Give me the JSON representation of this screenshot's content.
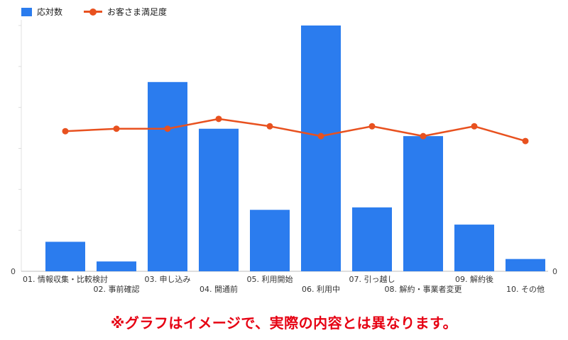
{
  "legend": {
    "bar_label": "応対数",
    "line_label": "お客さま満足度"
  },
  "axes": {
    "y_left_min_label": "0",
    "y_right_min_label": "0"
  },
  "footnote": {
    "text": "※グラフはイメージで、実際の内容とは異なります。",
    "color": "#e60012"
  },
  "chart_data": {
    "type": "combo",
    "title": "",
    "xlabel": "",
    "ylabel": "",
    "ylim": [
      0,
      100
    ],
    "grid": false,
    "legend_position": "top-left",
    "x_label_stagger": true,
    "categories": [
      "01. 情報収集・比較検討",
      "02. 事前確認",
      "03. 申し込み",
      "04. 開通前",
      "05. 利用開始",
      "06. 利用中",
      "07. 引っ越し",
      "08. 解約・事業者変更",
      "09. 解約後",
      "10. その他"
    ],
    "series": [
      {
        "name": "応対数",
        "render": "bar",
        "color": "#2b7cee",
        "values": [
          12,
          4,
          77,
          58,
          25,
          100,
          26,
          55,
          19,
          5
        ]
      },
      {
        "name": "お客さま満足度",
        "render": "line",
        "color": "#e8511f",
        "values": [
          57,
          58,
          58,
          62,
          59,
          55,
          59,
          55,
          59,
          53
        ]
      }
    ]
  }
}
